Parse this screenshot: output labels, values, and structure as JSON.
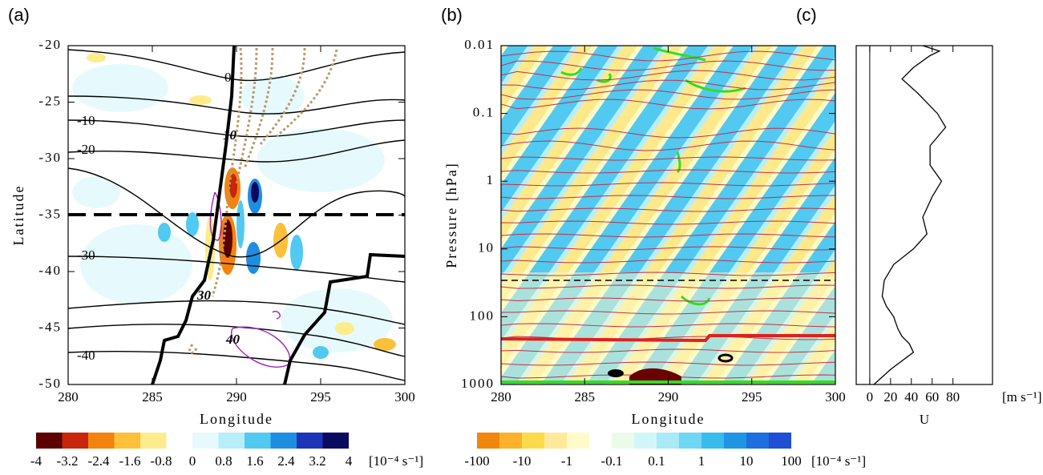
{
  "chart_data": [
    {
      "type": "contour",
      "label": "(a)",
      "xlabel": "Longitude",
      "ylabel": "Latitude",
      "xlim": [
        280,
        300
      ],
      "ylim": [
        -50,
        -20
      ],
      "xticks": [
        280,
        285,
        290,
        295,
        300
      ],
      "yticks": [
        -50,
        -45,
        -40,
        -35,
        -30,
        -25,
        -20
      ],
      "contour_labels": [
        "0",
        "-10",
        "-20",
        "-30",
        "-40",
        "10",
        "30",
        "40"
      ],
      "colorbar": {
        "colors": [
          "#5c0000",
          "#c8250b",
          "#f4830e",
          "#fcc03a",
          "#fdec8c",
          "#ffffff",
          "#e6fafd",
          "#b8eef9",
          "#52c9f0",
          "#1e8fe0",
          "#1c34b8",
          "#0a0a60"
        ],
        "ticks": [
          -4,
          -3.2,
          -2.4,
          -1.6,
          -0.8,
          0,
          0.8,
          1.6,
          2.4,
          3.2,
          4
        ],
        "unit": "[10⁻⁴ s⁻¹]"
      }
    },
    {
      "type": "contour",
      "label": "(b)",
      "xlabel": "Longitude",
      "ylabel": "Pressure [hPa]",
      "ylog": true,
      "xlim": [
        280,
        300
      ],
      "ylim": [
        1000,
        0.01
      ],
      "xticks": [
        280,
        285,
        290,
        295,
        300
      ],
      "yticks": [
        1000,
        100,
        10,
        1,
        0.1,
        0.01
      ],
      "colorbar": {
        "colors": [
          "#f0860c",
          "#fbb22a",
          "#fdda4a",
          "#fee99a",
          "#fffbc8",
          "#ffffff",
          "#eafbea",
          "#d2f6f8",
          "#a8eaf8",
          "#6fd6f3",
          "#38bcee",
          "#1f95e4",
          "#1d6ede",
          "#1e4fd4"
        ],
        "ticks": [
          -100,
          -10,
          -1,
          -0.1,
          0.1,
          1,
          10,
          100
        ],
        "unit": "[10⁻⁴ s⁻¹]"
      }
    },
    {
      "type": "line",
      "label": "(c)",
      "xlabel": "U",
      "unit": "[m s⁻¹]",
      "ylog": true,
      "color": "#000000",
      "xlim": [
        -13,
        118
      ],
      "xticks": [
        0,
        20,
        40,
        60,
        80
      ],
      "ylim": [
        1000,
        0.01
      ],
      "pressure": [
        1000,
        600,
        335,
        250,
        195,
        150,
        100,
        70,
        50,
        29,
        17,
        10,
        6,
        3.4,
        1.7,
        1,
        0.58,
        0.3,
        0.16,
        0.1,
        0.05,
        0.031,
        0.021,
        0.014,
        0.012,
        0.01
      ],
      "values": [
        4,
        20,
        42,
        38,
        31,
        27,
        23,
        16,
        12,
        14,
        23,
        42,
        55,
        51,
        60,
        69,
        58,
        58,
        73,
        65,
        46,
        31,
        42,
        58,
        67,
        51
      ]
    }
  ]
}
